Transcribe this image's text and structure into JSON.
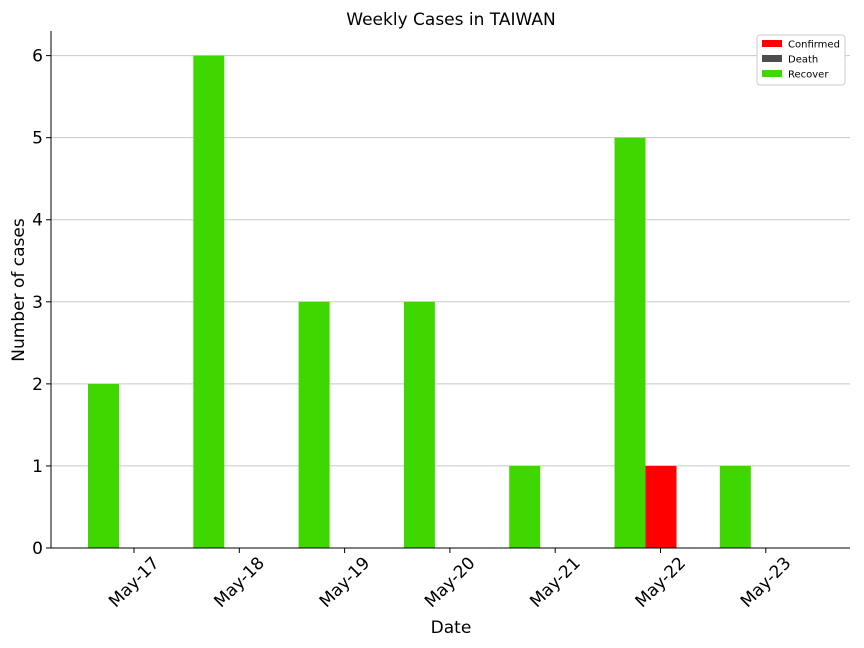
{
  "chart_data": {
    "type": "bar",
    "title": "Weekly Cases in TAIWAN",
    "xlabel": "Date",
    "ylabel": "Number of cases",
    "categories": [
      "May-17",
      "May-18",
      "May-19",
      "May-20",
      "May-21",
      "May-22",
      "May-23"
    ],
    "series": [
      {
        "name": "Confirmed",
        "color": "#ff0000",
        "values": [
          0,
          0,
          0,
          0,
          0,
          1,
          0
        ]
      },
      {
        "name": "Death",
        "color": "#4d4d4d",
        "values": [
          0,
          0,
          0,
          0,
          0,
          0,
          0
        ]
      },
      {
        "name": "Recover",
        "color": "#3ed800",
        "values": [
          2,
          6,
          3,
          3,
          1,
          5,
          1
        ]
      }
    ],
    "ylim": [
      0,
      6.3
    ],
    "yticks": [
      0,
      1,
      2,
      3,
      4,
      5,
      6
    ],
    "grid": "y",
    "legend_position": "top-right"
  }
}
